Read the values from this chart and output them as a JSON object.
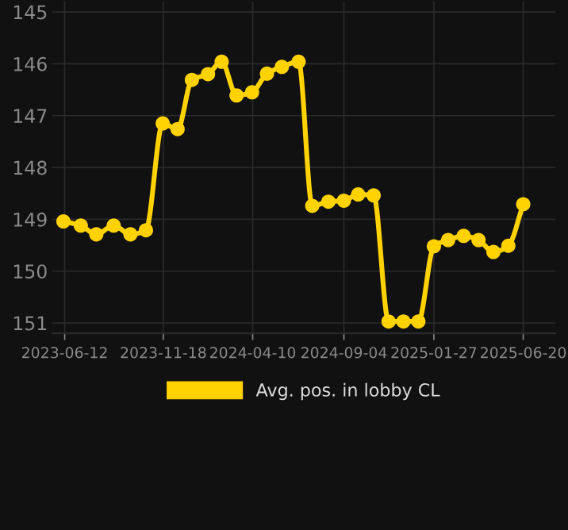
{
  "chart_data": {
    "type": "line",
    "x": [
      "2023-06-10",
      "2023-07-08",
      "2023-08-02",
      "2023-08-30",
      "2023-09-26",
      "2023-10-21",
      "2023-11-17",
      "2023-12-11",
      "2024-01-03",
      "2024-01-29",
      "2024-02-20",
      "2024-03-15",
      "2024-04-09",
      "2024-05-03",
      "2024-05-27",
      "2024-06-23",
      "2024-07-15",
      "2024-08-10",
      "2024-09-04",
      "2024-09-27",
      "2024-10-22",
      "2024-11-15",
      "2024-12-09",
      "2025-01-02",
      "2025-01-27",
      "2025-02-19",
      "2025-03-16",
      "2025-04-09",
      "2025-05-03",
      "2025-05-27",
      "2025-06-20"
    ],
    "series": [
      {
        "name": "Avg. pos. in lobby CL",
        "color": "#ffd200",
        "values": [
          149.04,
          149.12,
          149.29,
          149.12,
          149.29,
          149.21,
          147.15,
          147.26,
          146.31,
          146.2,
          145.96,
          146.61,
          146.55,
          146.19,
          146.06,
          145.96,
          148.74,
          148.66,
          148.64,
          148.52,
          148.54,
          150.97,
          150.97,
          150.97,
          149.52,
          149.4,
          149.32,
          149.4,
          149.63,
          149.51,
          148.71
        ]
      }
    ],
    "xlim": [
      "2023-05-23",
      "2025-08-11"
    ],
    "xticks": [
      "2023-06-12",
      "2023-11-18",
      "2024-04-10",
      "2024-09-04",
      "2025-01-27",
      "2025-06-20"
    ],
    "ylim": [
      151.2,
      144.8
    ],
    "yticks": [
      145,
      146,
      147,
      148,
      149,
      150,
      151
    ],
    "grid": true,
    "legend": "bottom",
    "marker": "circle",
    "line_style": "solid"
  }
}
